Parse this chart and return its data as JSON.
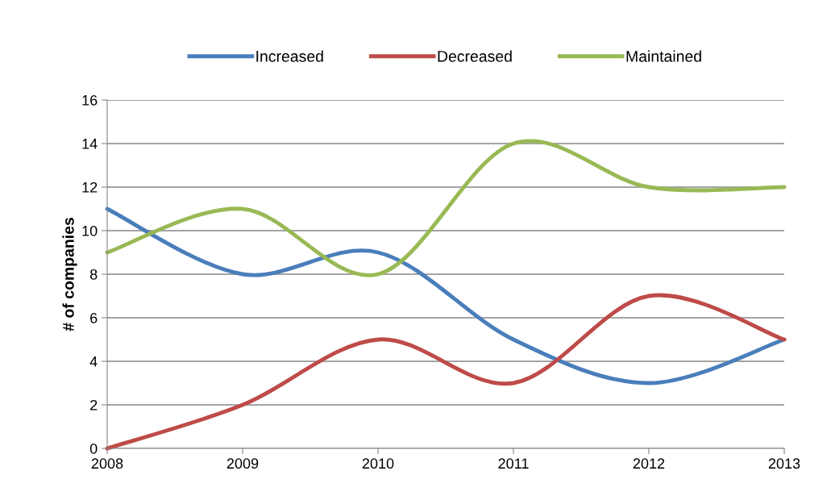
{
  "chart_data": {
    "type": "line",
    "ylabel": "# of companies",
    "x": [
      2008,
      2009,
      2010,
      2011,
      2012,
      2013
    ],
    "series": [
      {
        "name": "Increased",
        "color": "#4a7ebb",
        "values": [
          11,
          8,
          9,
          5,
          3,
          5
        ]
      },
      {
        "name": "Decreased",
        "color": "#be4b48",
        "values": [
          0,
          2,
          5,
          3,
          7,
          5
        ]
      },
      {
        "name": "Maintained",
        "color": "#98b954",
        "values": [
          9,
          11,
          8,
          14,
          12,
          12
        ]
      }
    ],
    "xlim": [
      2008,
      2013
    ],
    "xticks": [
      2008,
      2009,
      2010,
      2011,
      2012,
      2013
    ],
    "ylim": [
      0,
      16
    ],
    "yticks": [
      0,
      2,
      4,
      6,
      8,
      10,
      12,
      14,
      16
    ],
    "grid": "y",
    "legend": "top",
    "marker": "none",
    "line_style": "solid"
  }
}
